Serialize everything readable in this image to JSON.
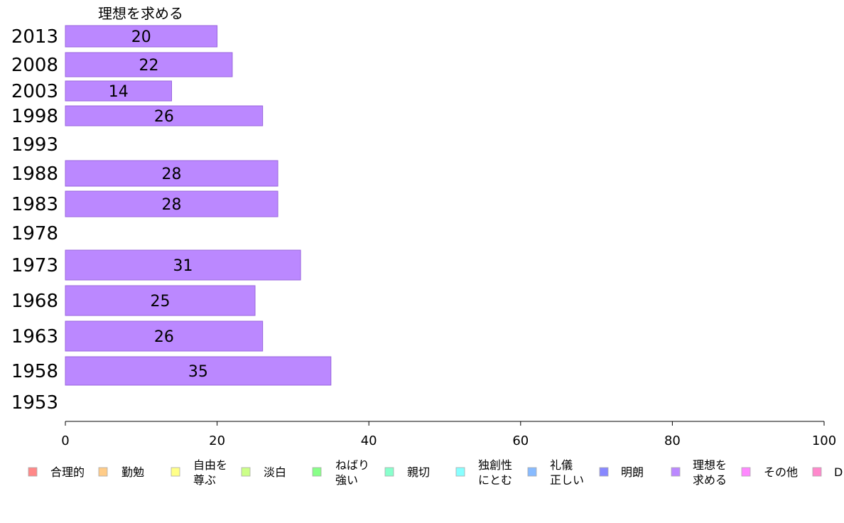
{
  "chart_data": {
    "type": "bar",
    "orientation": "horizontal",
    "title": "理想を求める",
    "categories": [
      "2013",
      "2008",
      "2003",
      "1998",
      "1993",
      "1988",
      "1983",
      "1978",
      "1973",
      "1968",
      "1963",
      "1958",
      "1953"
    ],
    "series": [
      {
        "name": "理想を求める",
        "values": [
          20,
          22,
          14,
          26,
          null,
          28,
          28,
          null,
          31,
          25,
          26,
          35,
          null
        ],
        "color": "#bb88ff"
      }
    ],
    "xlim": [
      0,
      100
    ],
    "xticks": [
      "0",
      "20",
      "40",
      "60",
      "80",
      "100"
    ],
    "grid": false,
    "legend_position": "bottom",
    "legend": [
      {
        "lines": [
          "合理的"
        ],
        "color": "#ff8888"
      },
      {
        "lines": [
          "勤勉"
        ],
        "color": "#ffcc88"
      },
      {
        "lines": [
          "自由を",
          "尊ぶ"
        ],
        "color": "#ffff88"
      },
      {
        "lines": [
          "淡白"
        ],
        "color": "#ccff88"
      },
      {
        "lines": [
          "ねばり",
          "強い"
        ],
        "color": "#88ff88"
      },
      {
        "lines": [
          "親切"
        ],
        "color": "#88ffcc"
      },
      {
        "lines": [
          "独創性",
          "にとむ"
        ],
        "color": "#88ffff"
      },
      {
        "lines": [
          "礼儀",
          "正しい"
        ],
        "color": "#88bbff"
      },
      {
        "lines": [
          "明朗"
        ],
        "color": "#8888ff"
      },
      {
        "lines": [
          "理想を",
          "求める"
        ],
        "color": "#bb88ff"
      },
      {
        "lines": [
          "その他"
        ],
        "color": "#ff88ff"
      },
      {
        "lines": [
          "D"
        ],
        "color": "#ff88cc"
      }
    ]
  }
}
